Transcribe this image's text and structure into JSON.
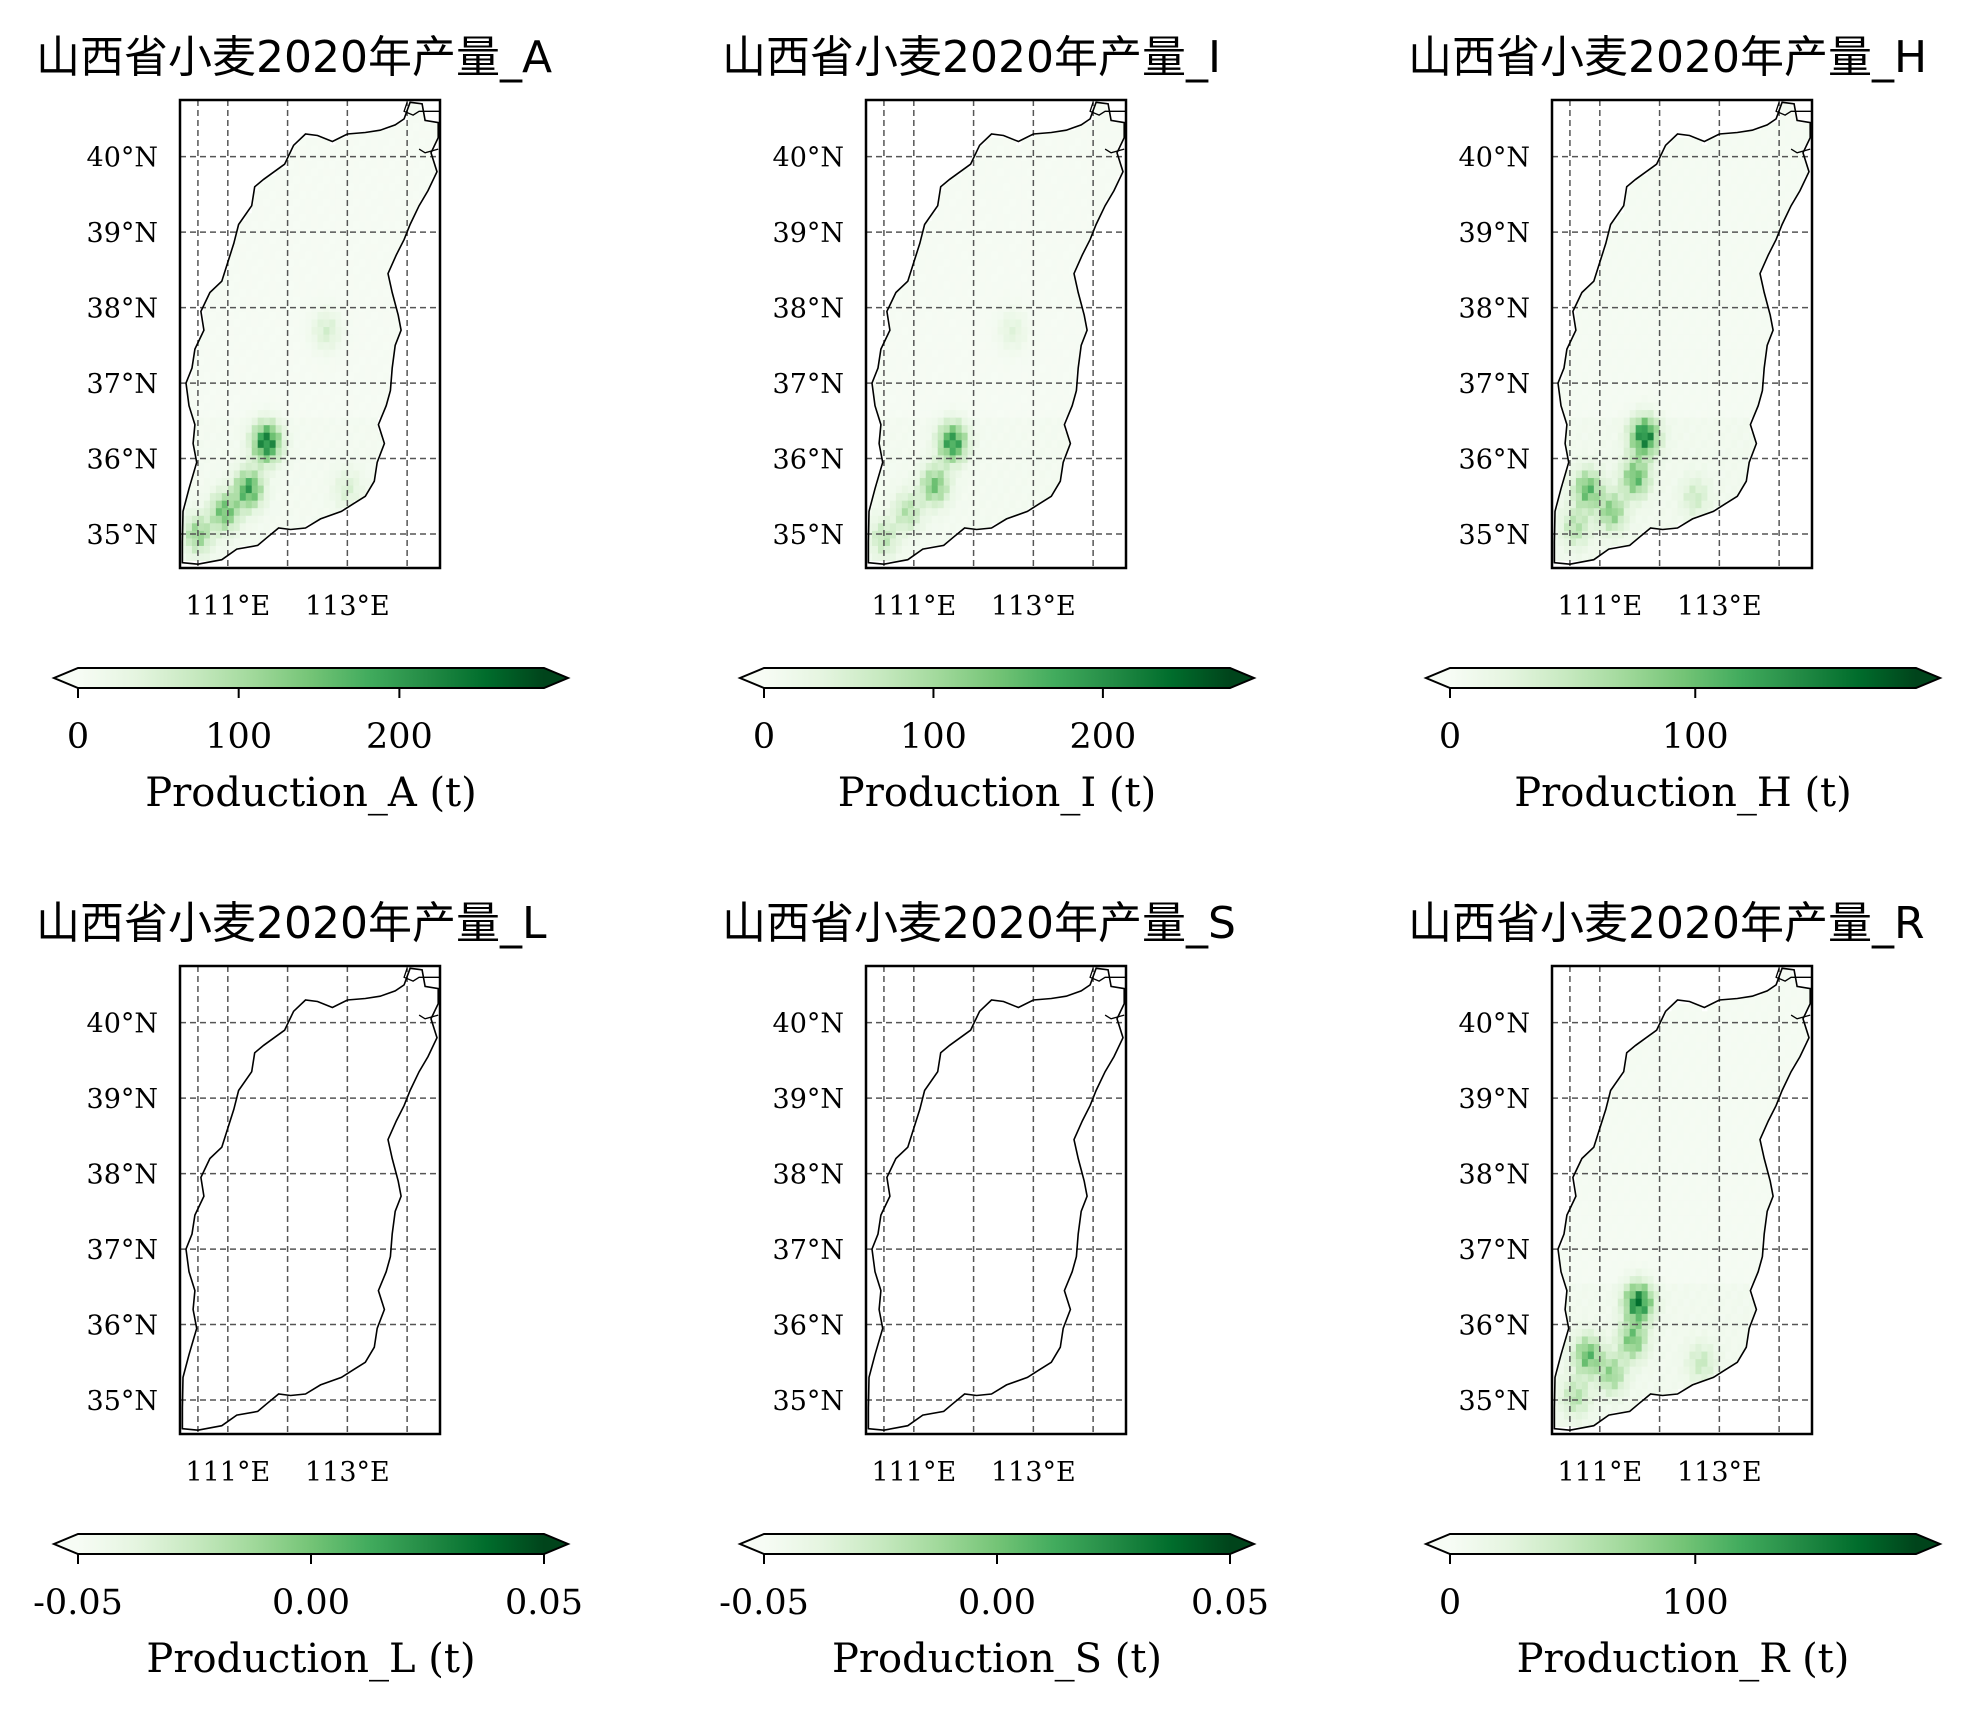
{
  "chart_data": [
    {
      "type": "heatmap",
      "title": "山西省小麦2020年产量_A",
      "colorbar": {
        "ticks": [
          "0",
          "100",
          "200"
        ],
        "tick_values": [
          0,
          100,
          200
        ],
        "range": [
          0,
          290
        ],
        "extend": "both",
        "cmap": "Greens",
        "label": "Production_A (t)"
      },
      "lat_ticks": [
        "40°N",
        "39°N",
        "38°N",
        "37°N",
        "36°N",
        "35°N"
      ],
      "lon_ticks": [
        "111°E",
        "113°E"
      ],
      "extent": {
        "lon": [
          110.2,
          114.55
        ],
        "lat": [
          34.55,
          40.75
        ]
      },
      "hotspots": [
        {
          "lon": 111.65,
          "lat": 36.22,
          "value": 270
        },
        {
          "lon": 111.35,
          "lat": 35.6,
          "value": 210
        },
        {
          "lon": 110.95,
          "lat": 35.3,
          "value": 170
        },
        {
          "lon": 110.5,
          "lat": 35.0,
          "value": 130
        },
        {
          "lon": 112.65,
          "lat": 37.7,
          "value": 60
        },
        {
          "lon": 113.0,
          "lat": 35.6,
          "value": 50
        }
      ]
    },
    {
      "type": "heatmap",
      "title": "山西省小麦2020年产量_I",
      "colorbar": {
        "ticks": [
          "0",
          "100",
          "200"
        ],
        "tick_values": [
          0,
          100,
          200
        ],
        "range": [
          0,
          275
        ],
        "extend": "both",
        "cmap": "Greens",
        "label": "Production_I (t)"
      },
      "lat_ticks": [
        "40°N",
        "39°N",
        "38°N",
        "37°N",
        "36°N",
        "35°N"
      ],
      "lon_ticks": [
        "111°E",
        "113°E"
      ],
      "extent": {
        "lon": [
          110.2,
          114.55
        ],
        "lat": [
          34.55,
          40.75
        ]
      },
      "hotspots": [
        {
          "lon": 111.65,
          "lat": 36.22,
          "value": 220
        },
        {
          "lon": 111.35,
          "lat": 35.65,
          "value": 150
        },
        {
          "lon": 110.9,
          "lat": 35.3,
          "value": 90
        },
        {
          "lon": 110.5,
          "lat": 34.95,
          "value": 80
        },
        {
          "lon": 112.65,
          "lat": 37.7,
          "value": 40
        }
      ]
    },
    {
      "type": "heatmap",
      "title": "山西省小麦2020年产量_H",
      "colorbar": {
        "ticks": [
          "0",
          "100"
        ],
        "tick_values": [
          0,
          100
        ],
        "range": [
          0,
          190
        ],
        "extend": "both",
        "cmap": "Greens",
        "label": "Production_H (t)"
      },
      "lat_ticks": [
        "40°N",
        "39°N",
        "38°N",
        "37°N",
        "36°N",
        "35°N"
      ],
      "lon_ticks": [
        "111°E",
        "113°E"
      ],
      "extent": {
        "lon": [
          110.2,
          114.55
        ],
        "lat": [
          34.55,
          40.75
        ]
      },
      "hotspots": [
        {
          "lon": 111.75,
          "lat": 36.3,
          "value": 170
        },
        {
          "lon": 111.6,
          "lat": 35.75,
          "value": 110
        },
        {
          "lon": 110.8,
          "lat": 35.6,
          "value": 110
        },
        {
          "lon": 111.2,
          "lat": 35.3,
          "value": 90
        },
        {
          "lon": 110.6,
          "lat": 35.1,
          "value": 60
        },
        {
          "lon": 112.6,
          "lat": 35.5,
          "value": 40
        }
      ]
    },
    {
      "type": "heatmap",
      "title": "山西省小麦2020年产量_L",
      "colorbar": {
        "ticks": [
          "-0.05",
          "0.00",
          "0.05"
        ],
        "tick_values": [
          -0.05,
          0.0,
          0.05
        ],
        "range": [
          -0.05,
          0.05
        ],
        "extend": "both",
        "cmap": "Greens",
        "label": "Production_L (t)"
      },
      "lat_ticks": [
        "40°N",
        "39°N",
        "38°N",
        "37°N",
        "36°N",
        "35°N"
      ],
      "lon_ticks": [
        "111°E",
        "113°E"
      ],
      "extent": {
        "lon": [
          110.2,
          114.55
        ],
        "lat": [
          34.55,
          40.75
        ]
      },
      "hotspots": []
    },
    {
      "type": "heatmap",
      "title": "山西省小麦2020年产量_S",
      "colorbar": {
        "ticks": [
          "-0.05",
          "0.00",
          "0.05"
        ],
        "tick_values": [
          -0.05,
          0.0,
          0.05
        ],
        "range": [
          -0.05,
          0.05
        ],
        "extend": "both",
        "cmap": "Greens",
        "label": "Production_S (t)"
      },
      "lat_ticks": [
        "40°N",
        "39°N",
        "38°N",
        "37°N",
        "36°N",
        "35°N"
      ],
      "lon_ticks": [
        "111°E",
        "113°E"
      ],
      "extent": {
        "lon": [
          110.2,
          114.55
        ],
        "lat": [
          34.55,
          40.75
        ]
      },
      "hotspots": []
    },
    {
      "type": "heatmap",
      "title": "山西省小麦2020年产量_R",
      "colorbar": {
        "ticks": [
          "0",
          "100"
        ],
        "tick_values": [
          0,
          100
        ],
        "range": [
          0,
          190
        ],
        "extend": "both",
        "cmap": "Greens",
        "label": "Production_R (t)"
      },
      "lat_ticks": [
        "40°N",
        "39°N",
        "38°N",
        "37°N",
        "36°N",
        "35°N"
      ],
      "lon_ticks": [
        "111°E",
        "113°E"
      ],
      "extent": {
        "lon": [
          110.2,
          114.55
        ],
        "lat": [
          34.55,
          40.75
        ]
      },
      "hotspots": [
        {
          "lon": 111.65,
          "lat": 36.3,
          "value": 170
        },
        {
          "lon": 111.55,
          "lat": 35.8,
          "value": 100
        },
        {
          "lon": 110.8,
          "lat": 35.6,
          "value": 110
        },
        {
          "lon": 111.2,
          "lat": 35.35,
          "value": 80
        },
        {
          "lon": 110.6,
          "lat": 35.05,
          "value": 60
        },
        {
          "lon": 112.7,
          "lat": 35.5,
          "value": 45
        }
      ]
    }
  ],
  "colors": {
    "cmap_low": "#f7fcf5",
    "cmap_mid": "#74c476",
    "cmap_high": "#00441b",
    "grid": "#555555",
    "boundary": "#000000"
  }
}
